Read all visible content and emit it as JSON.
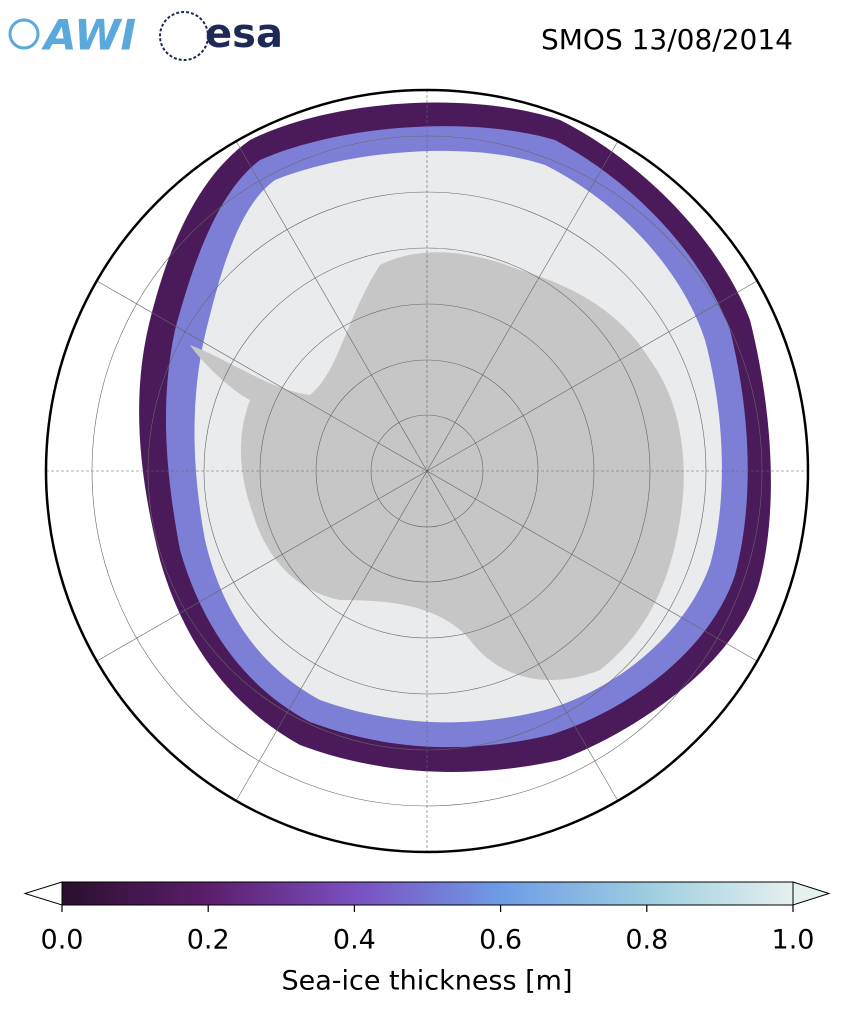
{
  "header": {
    "logos": [
      "AWI",
      "esa"
    ],
    "title": "SMOS 13/08/2014"
  },
  "colorbar": {
    "label": "Sea-ice thickness [m]",
    "lim": [
      0,
      1
    ],
    "ticks": [
      {
        "value": 0,
        "label": "0.0"
      },
      {
        "value": 0.2,
        "label": "0.2"
      },
      {
        "value": 0.4,
        "label": "0.4"
      },
      {
        "value": 0.6,
        "label": "0.6"
      },
      {
        "value": 0.8,
        "label": "0.8"
      },
      {
        "value": 1,
        "label": "1.0"
      }
    ],
    "colors": [
      "#2a0f2e",
      "#5c1e6b",
      "#7a4fc0",
      "#6e9be6",
      "#9ccde0",
      "#e6f0ef"
    ]
  }
}
